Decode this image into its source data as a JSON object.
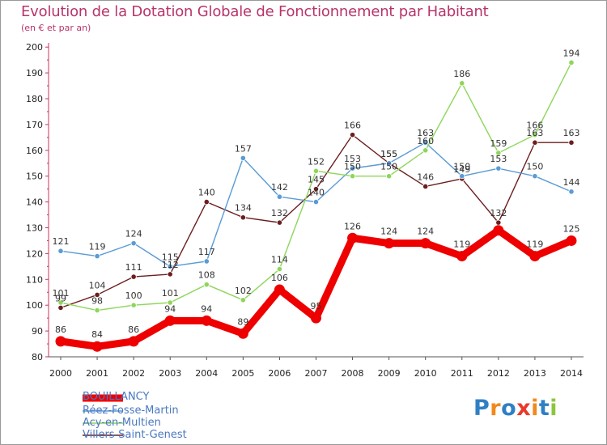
{
  "header": {
    "title": "Evolution de la Dotation Globale de Fonctionnement par Habitant",
    "subtitle": "(en € et par an)"
  },
  "logo": {
    "text": "Proxiti",
    "letters": [
      "P",
      "r",
      "o",
      "x",
      "i",
      "t",
      "i"
    ],
    "colors": [
      "#2f7fc4",
      "#f08a1c",
      "#2f7fc4",
      "#e83a2c",
      "#f08a1c",
      "#2f7fc4",
      "#8cc63e"
    ]
  },
  "chart_data": {
    "type": "line",
    "title": "Evolution de la Dotation Globale de Fonctionnement par Habitant",
    "subtitle": "(en € et par an)",
    "x": [
      "2000",
      "2001",
      "2002",
      "2003",
      "2004",
      "2005",
      "2006",
      "2007",
      "2008",
      "2009",
      "2010",
      "2011",
      "2012",
      "2013",
      "2014"
    ],
    "ylim": [
      80,
      200
    ],
    "yticks": [
      80,
      90,
      100,
      110,
      120,
      130,
      140,
      150,
      160,
      170,
      180,
      190,
      200
    ],
    "grid": false,
    "legend_position": "bottom-left",
    "series": [
      {
        "name": "BOUILLANCY",
        "color": "#ee0000",
        "values": [
          86,
          84,
          86,
          94,
          94,
          89,
          106,
          95,
          126,
          124,
          124,
          119,
          129,
          119,
          125
        ],
        "labels": [
          "86",
          "84",
          "86",
          "94",
          "94",
          "89",
          "106",
          "95",
          "126",
          "124",
          "124",
          "119",
          "",
          "119",
          "125"
        ]
      },
      {
        "name": "Réez-Fosse-Martin",
        "color": "#5a9bd5",
        "values": [
          121,
          119,
          124,
          115,
          117,
          157,
          142,
          140,
          153,
          155,
          163,
          150,
          153,
          150,
          144
        ],
        "labels": [
          "121",
          "119",
          "124",
          "115",
          "117",
          "157",
          "142",
          "140",
          "153",
          "155",
          "163",
          "150",
          "153",
          "150",
          "144"
        ]
      },
      {
        "name": "Acy-en-Multien",
        "color": "#8ed65a",
        "values": [
          101,
          98,
          100,
          101,
          108,
          102,
          114,
          152,
          150,
          150,
          160,
          186,
          159,
          166,
          194
        ],
        "labels": [
          "101",
          "98",
          "100",
          "101",
          "108",
          "102",
          "114",
          "152",
          "150",
          "150",
          "160",
          "186",
          "159",
          "166",
          "194"
        ]
      },
      {
        "name": "Villers-Saint-Genest",
        "color": "#6b1e1e",
        "values": [
          99,
          104,
          111,
          112,
          140,
          134,
          132,
          145,
          166,
          155,
          146,
          149,
          132,
          163,
          163
        ],
        "labels": [
          "99",
          "104",
          "111",
          "112",
          "140",
          "134",
          "132",
          "145",
          "166",
          "155",
          "146",
          "149",
          "132",
          "163",
          "163"
        ]
      }
    ]
  }
}
